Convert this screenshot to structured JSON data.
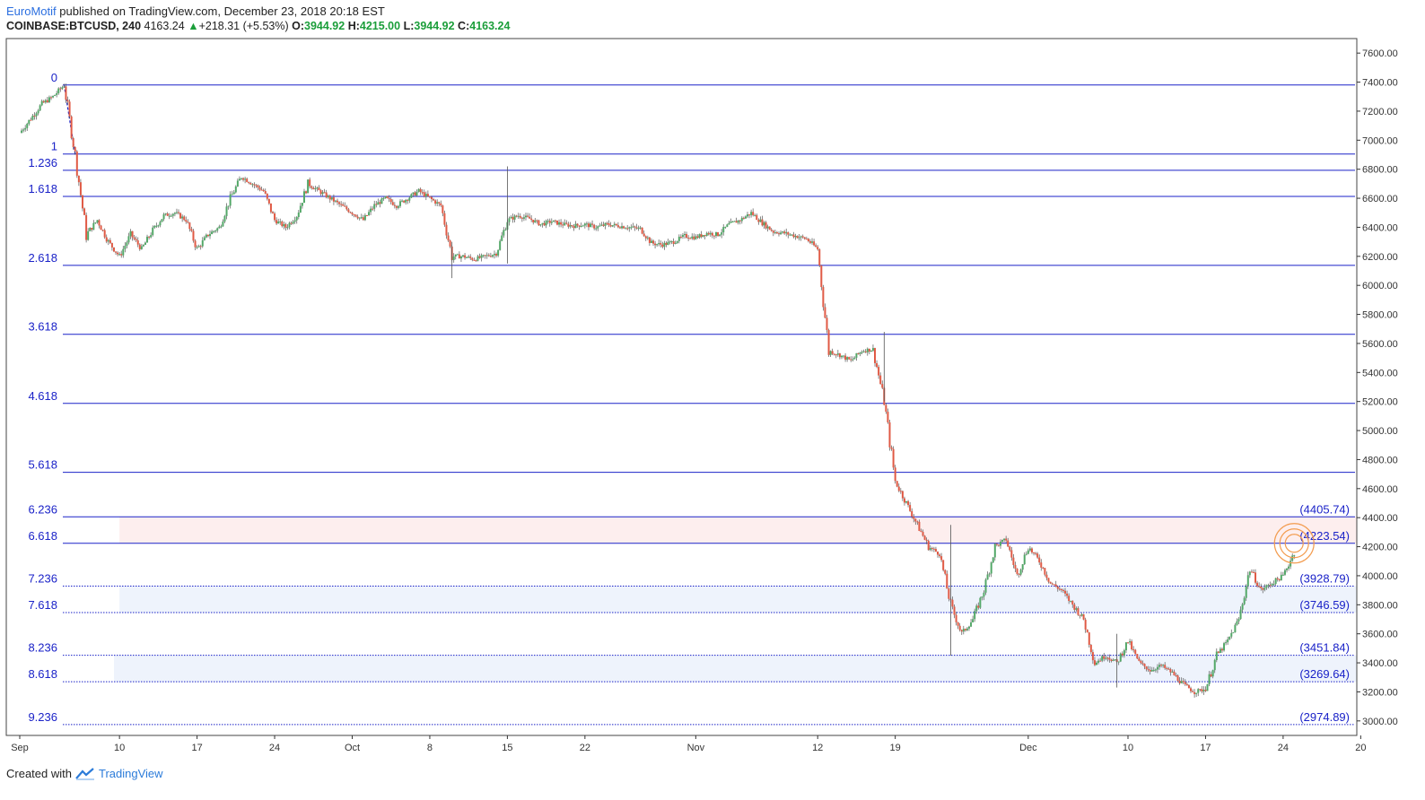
{
  "header": {
    "author": "EuroMotif",
    "published": "published on TradingView.com, December 23, 2018 20:18 EST",
    "symbol": "COINBASE:BTCUSD, 240",
    "last": "4163.24",
    "change_arrow": "▲",
    "change": "+218.31 (+5.53%)",
    "o_label": "O:",
    "o_value": "3944.92",
    "h_label": "H:",
    "h_value": "4215.00",
    "l_label": "L:",
    "l_value": "3944.92",
    "c_label": "C:",
    "c_value": "4163.24"
  },
  "footer": {
    "created_with": "Created with",
    "brand": "TradingView"
  },
  "chart_data": {
    "type": "candlestick",
    "symbol": "COINBASE:BTCUSD",
    "interval": "240",
    "ylim": [
      2900,
      7700
    ],
    "y_ticks": [
      3000,
      3200,
      3400,
      3600,
      3800,
      4000,
      4200,
      4400,
      4600,
      4800,
      5000,
      5200,
      5400,
      5600,
      5800,
      6000,
      6200,
      6400,
      6600,
      6800,
      7000,
      7200,
      7400,
      7600
    ],
    "x_ticks": [
      {
        "label": "Sep",
        "day": 0
      },
      {
        "label": "10",
        "day": 9
      },
      {
        "label": "17",
        "day": 16
      },
      {
        "label": "24",
        "day": 23
      },
      {
        "label": "Oct",
        "day": 30
      },
      {
        "label": "8",
        "day": 37
      },
      {
        "label": "15",
        "day": 44
      },
      {
        "label": "22",
        "day": 51
      },
      {
        "label": "Nov",
        "day": 61
      },
      {
        "label": "12",
        "day": 72
      },
      {
        "label": "19",
        "day": 79
      },
      {
        "label": "Dec",
        "day": 91
      },
      {
        "label": "10",
        "day": 100
      },
      {
        "label": "17",
        "day": 107
      },
      {
        "label": "24",
        "day": 114
      },
      {
        "label": "20",
        "day": 121
      }
    ],
    "fib_levels": [
      {
        "label": "0",
        "price": 7380,
        "style": "solid"
      },
      {
        "label": "1",
        "price": 6905,
        "style": "solid"
      },
      {
        "label": "1.236",
        "price": 6793,
        "style": "solid"
      },
      {
        "label": "1.618",
        "price": 6613,
        "style": "solid"
      },
      {
        "label": "2.618",
        "price": 6138,
        "style": "solid"
      },
      {
        "label": "3.618",
        "price": 5663,
        "style": "solid"
      },
      {
        "label": "4.618",
        "price": 5187,
        "style": "solid"
      },
      {
        "label": "5.618",
        "price": 4712,
        "style": "solid"
      },
      {
        "label": "6.236",
        "price": 4405.74,
        "price_label": "(4405.74)",
        "style": "solid"
      },
      {
        "label": "6.618",
        "price": 4223.54,
        "price_label": "(4223.54)",
        "style": "solid"
      },
      {
        "label": "7.236",
        "price": 3928.79,
        "price_label": "(3928.79)",
        "style": "dotted"
      },
      {
        "label": "7.618",
        "price": 3746.59,
        "price_label": "(3746.59)",
        "style": "dotted"
      },
      {
        "label": "8.236",
        "price": 3451.84,
        "price_label": "(3451.84)",
        "style": "dotted"
      },
      {
        "label": "8.618",
        "price": 3269.64,
        "price_label": "(3269.64)",
        "style": "dotted"
      },
      {
        "label": "9.236",
        "price": 2974.89,
        "price_label": "(2974.89)",
        "style": "dotted"
      }
    ],
    "zones": [
      {
        "from": 4223.54,
        "to": 4405.74,
        "start_day": 9,
        "color": "#fdeeee"
      },
      {
        "from": 3746.59,
        "to": 3928.79,
        "start_day": 9,
        "color": "#eef3fc"
      },
      {
        "from": 3269.64,
        "to": 3451.84,
        "start_day": 8.5,
        "color": "#eef3fc"
      }
    ],
    "price_path": [
      [
        0,
        7050
      ],
      [
        1,
        7150
      ],
      [
        2,
        7250
      ],
      [
        3,
        7300
      ],
      [
        4,
        7380
      ],
      [
        5,
        6900
      ],
      [
        6,
        6350
      ],
      [
        7,
        6450
      ],
      [
        8,
        6300
      ],
      [
        9,
        6200
      ],
      [
        10,
        6350
      ],
      [
        11,
        6250
      ],
      [
        12,
        6380
      ],
      [
        13,
        6480
      ],
      [
        14,
        6500
      ],
      [
        15,
        6450
      ],
      [
        16,
        6250
      ],
      [
        17,
        6350
      ],
      [
        18,
        6400
      ],
      [
        19,
        6600
      ],
      [
        20,
        6750
      ],
      [
        21,
        6700
      ],
      [
        22,
        6650
      ],
      [
        23,
        6450
      ],
      [
        24,
        6400
      ],
      [
        25,
        6480
      ],
      [
        26,
        6700
      ],
      [
        27,
        6650
      ],
      [
        28,
        6600
      ],
      [
        29,
        6550
      ],
      [
        30,
        6500
      ],
      [
        31,
        6450
      ],
      [
        32,
        6550
      ],
      [
        33,
        6600
      ],
      [
        34,
        6550
      ],
      [
        35,
        6600
      ],
      [
        36,
        6650
      ],
      [
        37,
        6600
      ],
      [
        38,
        6550
      ],
      [
        39,
        6200
      ],
      [
        40,
        6200
      ],
      [
        41,
        6180
      ],
      [
        42,
        6200
      ],
      [
        43,
        6220
      ],
      [
        44,
        6450
      ],
      [
        45,
        6480
      ],
      [
        46,
        6460
      ],
      [
        47,
        6420
      ],
      [
        48,
        6440
      ],
      [
        49,
        6420
      ],
      [
        50,
        6410
      ],
      [
        51,
        6420
      ],
      [
        52,
        6400
      ],
      [
        53,
        6420
      ],
      [
        54,
        6410
      ],
      [
        55,
        6400
      ],
      [
        56,
        6390
      ],
      [
        57,
        6290
      ],
      [
        58,
        6280
      ],
      [
        59,
        6300
      ],
      [
        60,
        6340
      ],
      [
        61,
        6330
      ],
      [
        62,
        6360
      ],
      [
        63,
        6350
      ],
      [
        64,
        6420
      ],
      [
        65,
        6450
      ],
      [
        66,
        6500
      ],
      [
        67,
        6430
      ],
      [
        68,
        6370
      ],
      [
        69,
        6360
      ],
      [
        70,
        6340
      ],
      [
        71,
        6320
      ],
      [
        72,
        6250
      ],
      [
        73,
        5550
      ],
      [
        74,
        5520
      ],
      [
        75,
        5480
      ],
      [
        76,
        5550
      ],
      [
        77,
        5560
      ],
      [
        78,
        5200
      ],
      [
        79,
        4650
      ],
      [
        80,
        4500
      ],
      [
        81,
        4350
      ],
      [
        82,
        4200
      ],
      [
        83,
        4150
      ],
      [
        84,
        3800
      ],
      [
        85,
        3600
      ],
      [
        86,
        3700
      ],
      [
        87,
        3900
      ],
      [
        88,
        4200
      ],
      [
        89,
        4250
      ],
      [
        90,
        4000
      ],
      [
        91,
        4200
      ],
      [
        92,
        4100
      ],
      [
        93,
        3950
      ],
      [
        94,
        3900
      ],
      [
        95,
        3800
      ],
      [
        96,
        3700
      ],
      [
        97,
        3400
      ],
      [
        98,
        3450
      ],
      [
        99,
        3400
      ],
      [
        100,
        3550
      ],
      [
        101,
        3400
      ],
      [
        102,
        3350
      ],
      [
        103,
        3380
      ],
      [
        104,
        3330
      ],
      [
        105,
        3250
      ],
      [
        106,
        3200
      ],
      [
        107,
        3220
      ],
      [
        108,
        3450
      ],
      [
        109,
        3550
      ],
      [
        110,
        3700
      ],
      [
        111,
        4050
      ],
      [
        112,
        3900
      ],
      [
        113,
        3950
      ],
      [
        114,
        4000
      ],
      [
        115,
        4163.24
      ]
    ],
    "spikes": [
      {
        "day": 44,
        "high": 6820,
        "low": 6150
      },
      {
        "day": 39,
        "high": 6300,
        "low": 6050
      },
      {
        "day": 78,
        "high": 5680,
        "low": 5200
      },
      {
        "day": 84,
        "high": 4350,
        "low": 3450
      },
      {
        "day": 99,
        "high": 3600,
        "low": 3230
      }
    ],
    "target_marker": {
      "day": 115,
      "price": 4223.54,
      "color": "#f39c4f"
    },
    "colors": {
      "up": "#53a868",
      "down": "#e05a45",
      "fib": "#1a22c8",
      "fib_text": "#1a22c8",
      "axis": "#333333",
      "border": "#444444"
    }
  }
}
